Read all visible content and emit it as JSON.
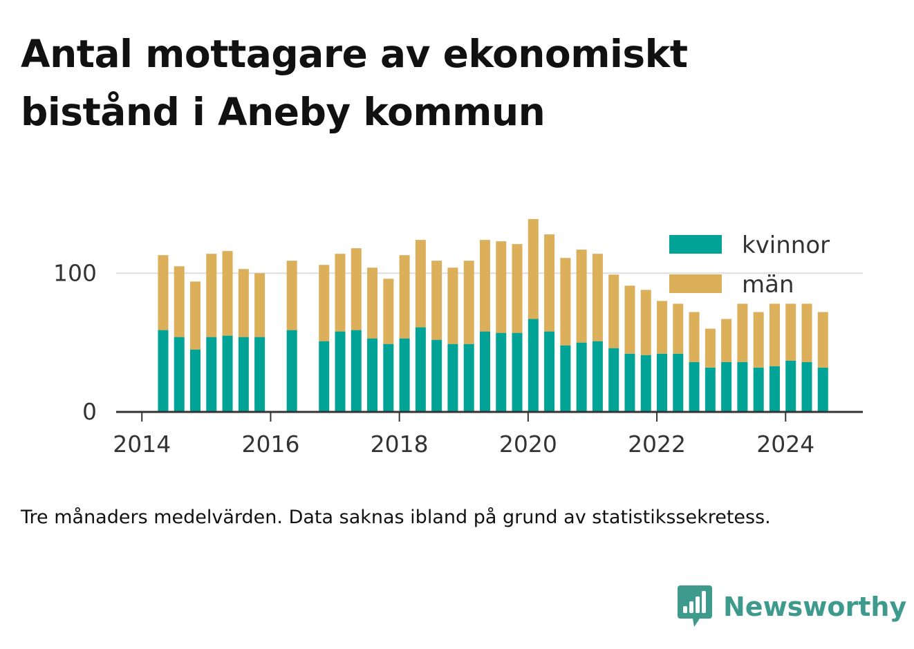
{
  "title": "Antal mottagare av ekonomiskt bistånd i Aneby kommun",
  "note": "Tre månaders medelvärden. Data saknas ibland på grund av statistikssekretess.",
  "brand": {
    "name": "Newsworthy",
    "icon": "newsworthy-chart-icon",
    "color": "#3d9a8c"
  },
  "colors": {
    "kvinnor": "#00a396",
    "man": "#dcaf5a",
    "gridline": "#dddddd",
    "axis": "#333333"
  },
  "chart_data": {
    "type": "bar",
    "stacked": true,
    "title": "Antal mottagare av ekonomiskt bistånd i Aneby kommun",
    "xlabel": "",
    "ylabel": "",
    "xlim": [
      2013.6,
      2025.2
    ],
    "ylim": [
      0,
      140
    ],
    "xticks": [
      "2014",
      "2016",
      "2018",
      "2020",
      "2022",
      "2024"
    ],
    "yticks": [
      "0",
      "100"
    ],
    "grid": "horizontal",
    "legend_position": "top-right",
    "x": [
      2014.33,
      2014.58,
      2014.83,
      2015.08,
      2015.33,
      2015.58,
      2015.83,
      2016.33,
      2016.83,
      2017.08,
      2017.33,
      2017.58,
      2017.83,
      2018.08,
      2018.33,
      2018.58,
      2018.83,
      2019.08,
      2019.33,
      2019.58,
      2019.83,
      2020.08,
      2020.33,
      2020.58,
      2020.83,
      2021.08,
      2021.33,
      2021.58,
      2021.83,
      2022.08,
      2022.33,
      2022.58,
      2022.83,
      2023.08,
      2023.33,
      2023.58,
      2023.83,
      2024.08,
      2024.33,
      2024.58
    ],
    "series": [
      {
        "name": "kvinnor",
        "color": "#00a396",
        "values": [
          59,
          54,
          45,
          54,
          55,
          54,
          54,
          59,
          51,
          58,
          59,
          53,
          49,
          53,
          61,
          52,
          49,
          49,
          58,
          57,
          57,
          67,
          58,
          48,
          50,
          51,
          46,
          42,
          41,
          42,
          42,
          36,
          32,
          36,
          36,
          32,
          33,
          37,
          36,
          32
        ]
      },
      {
        "name": "män",
        "color": "#dcaf5a",
        "values": [
          54,
          51,
          49,
          60,
          61,
          49,
          46,
          50,
          55,
          56,
          59,
          51,
          47,
          60,
          63,
          57,
          55,
          60,
          66,
          66,
          64,
          72,
          70,
          63,
          67,
          63,
          53,
          49,
          47,
          38,
          36,
          36,
          28,
          31,
          42,
          40,
          45,
          41,
          42,
          40
        ]
      }
    ]
  }
}
